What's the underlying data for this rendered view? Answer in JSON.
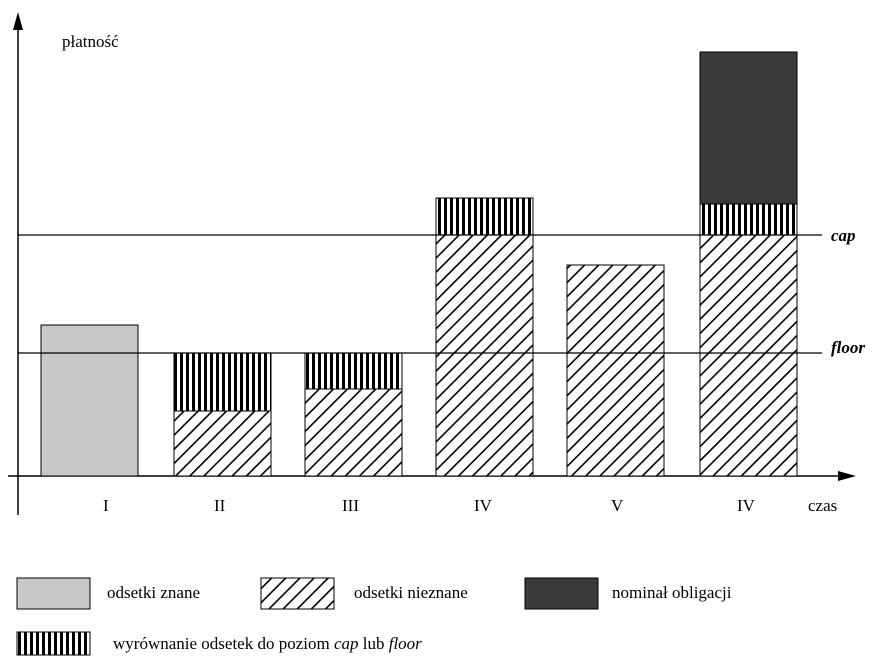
{
  "y_axis_label": "płatność",
  "x_axis_label": "czas",
  "cap_label": "cap",
  "floor_label": "floor",
  "periods": [
    "I",
    "II",
    "III",
    "IV",
    "V",
    "IV"
  ],
  "legend": {
    "known": "odsetki znane",
    "unknown": "odsetki nieznane",
    "nominal": "nominał obligacji",
    "adjust_before": "wyrównanie odsetek do poziom ",
    "adjust_cap": "cap",
    "adjust_mid": " lub ",
    "adjust_floor": "floor"
  },
  "colors": {
    "known": "#c8c8c8",
    "nominal": "#3a3a3a",
    "line": "#000000"
  }
}
